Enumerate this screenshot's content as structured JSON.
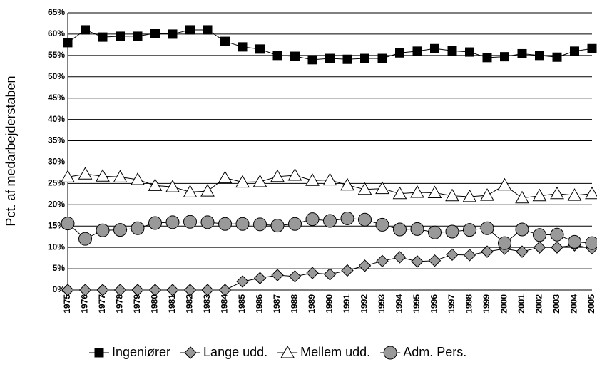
{
  "chart_data": {
    "type": "line",
    "y_label": "Pct. af medarbejderstaben",
    "categories": [
      "1975",
      "1976",
      "1977",
      "1978",
      "1979",
      "1980",
      "1981",
      "1982",
      "1983",
      "1984",
      "1985",
      "1986",
      "1987",
      "1988",
      "1989",
      "1990",
      "1991",
      "1992",
      "1993",
      "1994",
      "1995",
      "1996",
      "1997",
      "1998",
      "1999",
      "2000",
      "2001",
      "2002",
      "2003",
      "2004",
      "2005"
    ],
    "ylim": [
      0,
      65
    ],
    "yticks": [
      {
        "value": 0,
        "label": "0%"
      },
      {
        "value": 5,
        "label": "5%"
      },
      {
        "value": 10,
        "label": "10%"
      },
      {
        "value": 15,
        "label": "15%"
      },
      {
        "value": 20,
        "label": "20%"
      },
      {
        "value": 25,
        "label": "25%"
      },
      {
        "value": 30,
        "label": "30%"
      },
      {
        "value": 35,
        "label": "35%"
      },
      {
        "value": 40,
        "label": "40%"
      },
      {
        "value": 45,
        "label": "45%"
      },
      {
        "value": 50,
        "label": "50%"
      },
      {
        "value": 55,
        "label": "55%"
      },
      {
        "value": 60,
        "label": "60%"
      },
      {
        "value": 65,
        "label": "65%"
      }
    ],
    "grid": true,
    "legend": "bottom",
    "series": [
      {
        "name": "Ingeniører",
        "color": "#000000",
        "marker": "square",
        "values": [
          58,
          61,
          59.3,
          59.5,
          59.5,
          60.2,
          60,
          61,
          61,
          58.3,
          57,
          56.5,
          55,
          54.8,
          54,
          54.3,
          54.1,
          54.3,
          54.3,
          55.6,
          56,
          56.6,
          56.1,
          55.8,
          54.5,
          54.7,
          55.4,
          55,
          54.6,
          56,
          56.6
        ]
      },
      {
        "name": "Lange udd.",
        "color": "#999999",
        "marker": "diamond",
        "values": [
          0,
          0,
          0,
          0,
          0,
          0,
          0,
          0,
          0,
          0,
          2,
          2.8,
          3.5,
          3.2,
          4,
          3.7,
          4.6,
          5.7,
          6.8,
          7.7,
          6.7,
          6.9,
          8.3,
          8.2,
          9,
          9.7,
          9,
          10,
          10,
          10.5,
          9.8
        ]
      },
      {
        "name": "Mellem udd.",
        "color": "#ffffff",
        "marker": "triangle",
        "values": [
          26.5,
          27.2,
          26.7,
          26.5,
          25.9,
          24.5,
          24.2,
          23,
          23.2,
          26.3,
          25.3,
          25.4,
          26.6,
          26.9,
          25.7,
          25.8,
          24.6,
          23.6,
          23.8,
          22.6,
          22.9,
          22.8,
          22.1,
          21.9,
          22.2,
          24.6,
          21.6,
          22.1,
          22.6,
          22.2,
          22.6
        ]
      },
      {
        "name": "Adm. Pers.",
        "color": "#999999",
        "marker": "circle",
        "values": [
          15.6,
          12,
          14,
          14.1,
          14.5,
          15.7,
          15.9,
          16,
          15.9,
          15.5,
          15.5,
          15.4,
          15.1,
          15.5,
          16.6,
          16.2,
          16.8,
          16.5,
          15.3,
          14.2,
          14.3,
          13.5,
          13.7,
          14.1,
          14.5,
          11,
          14.2,
          12.9,
          13,
          11.3,
          11
        ]
      }
    ]
  }
}
